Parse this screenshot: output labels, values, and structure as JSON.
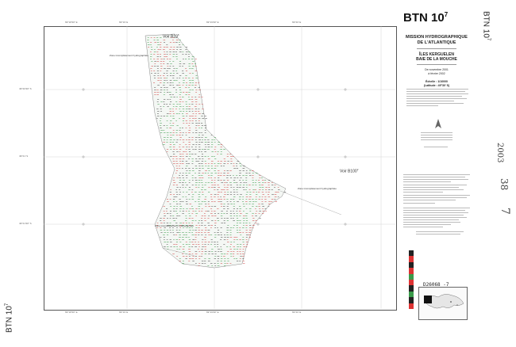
{
  "sheet": {
    "code": "BTN 10",
    "code_sup": "7",
    "rotated_title": "BTN 10",
    "rotated_title_sup": "7",
    "left_rotated_title": "BTN 10",
    "left_rotated_title_sup": "7"
  },
  "panel": {
    "mission_line1": "MISSION HYDROGRAPHIQUE",
    "mission_line2": "DE L'ATLANTIQUE",
    "place_line1": "ÎLES KERGUELEN",
    "place_line2": "BAIE DE LA MOUCHE",
    "dates_line1": "De novembre 2001",
    "dates_line2": "à février 2002",
    "scale_line1": "Échelle : 1/10000",
    "scale_line2": "(Latitude : 49°30' S)",
    "ref": "D26068 -7"
  },
  "map_labels": {
    "voir_top": "Voir B10",
    "voir_top_sup": "6",
    "voir_right": "Voir B100",
    "voir_right_sup": "2",
    "zone1": "Zone incomplètement hydrographiée",
    "zone2": "Zone incomplètement hydrographiée",
    "zone3": "Zone incomplètement hydrographiée"
  },
  "handwriting": {
    "year": "2003",
    "num1": "38",
    "num2": "7"
  },
  "colors": {
    "frame": "#555555",
    "sounding_green": "#3a9a4a",
    "sounding_red": "#d04040",
    "sounding_black": "#444444",
    "grid": "#bbbbbb"
  },
  "icons": [
    "north-arrow-icon",
    "inset-locator-map"
  ]
}
